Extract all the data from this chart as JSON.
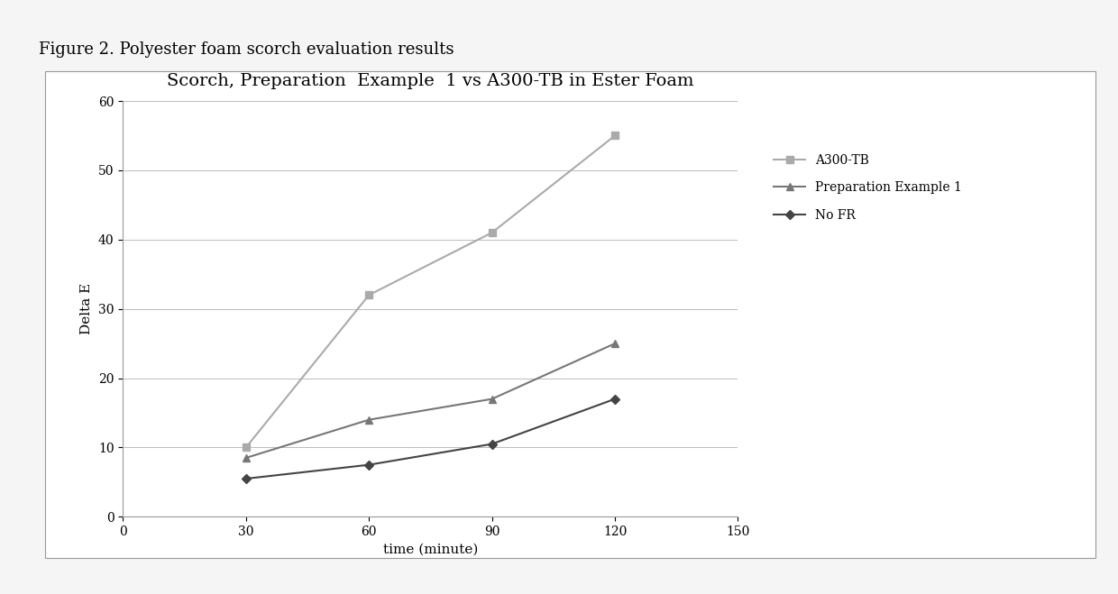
{
  "title": "Scorch, Preparation  Example  1 vs A300-TB in Ester Foam",
  "figure_label": "Figure 2. Polyester foam scorch evaluation results",
  "xlabel": "time (minute)",
  "ylabel": "Delta E",
  "xlim": [
    0,
    150
  ],
  "ylim": [
    0,
    60
  ],
  "xticks": [
    0,
    30,
    60,
    90,
    120,
    150
  ],
  "yticks": [
    0,
    10,
    20,
    30,
    40,
    50,
    60
  ],
  "series": [
    {
      "label": "A300-TB",
      "x": [
        30,
        60,
        90,
        120
      ],
      "y": [
        10,
        32,
        41,
        55
      ],
      "color": "#aaaaaa",
      "marker": "s",
      "linewidth": 1.5,
      "markersize": 6
    },
    {
      "label": "Preparation Example 1",
      "x": [
        30,
        60,
        90,
        120
      ],
      "y": [
        8.5,
        14,
        17,
        25
      ],
      "color": "#777777",
      "marker": "^",
      "linewidth": 1.5,
      "markersize": 6
    },
    {
      "label": "No FR",
      "x": [
        30,
        60,
        90,
        120
      ],
      "y": [
        5.5,
        7.5,
        10.5,
        17
      ],
      "color": "#444444",
      "marker": "D",
      "linewidth": 1.5,
      "markersize": 5
    }
  ],
  "background_color": "#f5f5f5",
  "chart_box_color": "#ffffff",
  "plot_bg_color": "#ffffff",
  "grid_color": "#bbbbbb",
  "title_fontsize": 14,
  "axis_label_fontsize": 11,
  "tick_fontsize": 10,
  "legend_fontsize": 10,
  "figure_label_fontsize": 13
}
